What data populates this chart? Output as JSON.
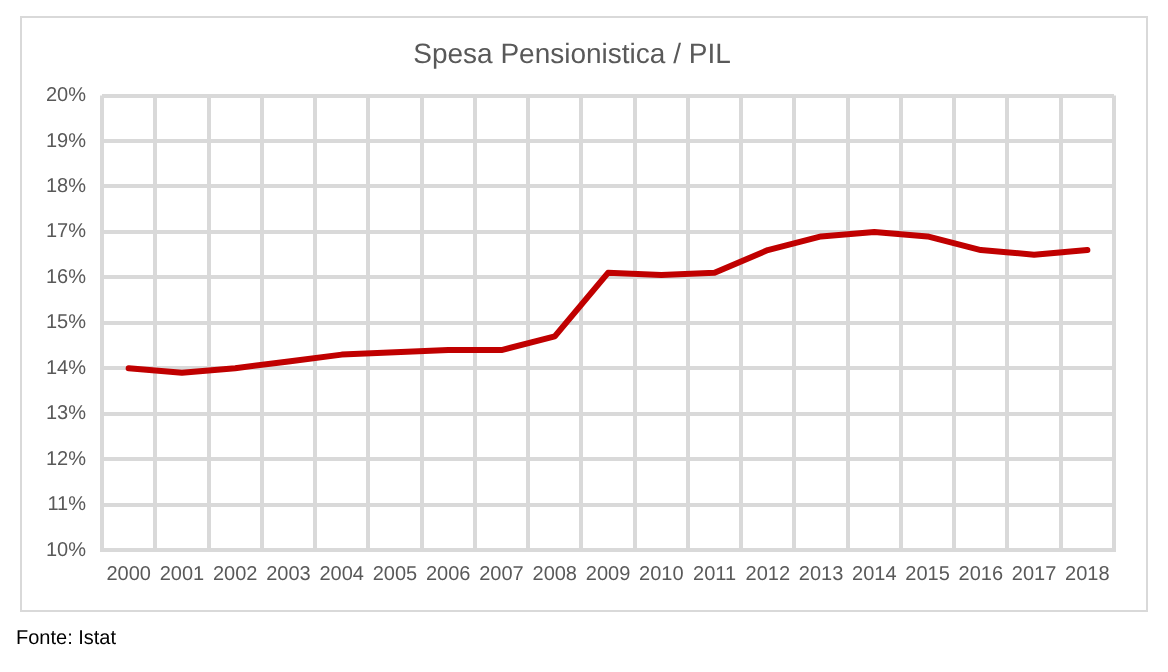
{
  "chart_data": {
    "type": "line",
    "title": "Spesa Pensionistica / PIL",
    "categories": [
      "2000",
      "2001",
      "2002",
      "2003",
      "2004",
      "2005",
      "2006",
      "2007",
      "2008",
      "2009",
      "2010",
      "2011",
      "2012",
      "2013",
      "2014",
      "2015",
      "2016",
      "2017",
      "2018"
    ],
    "series": [
      {
        "color": "#c00000",
        "values": [
          14.0,
          13.9,
          14.0,
          14.15,
          14.3,
          14.35,
          14.4,
          14.4,
          14.7,
          16.1,
          16.05,
          16.1,
          16.6,
          16.9,
          17.0,
          16.9,
          16.6,
          16.5,
          16.6
        ]
      }
    ],
    "ylim": [
      10,
      20
    ],
    "yticks": [
      {
        "value": 10,
        "label": "10%"
      },
      {
        "value": 11,
        "label": "11%"
      },
      {
        "value": 12,
        "label": "12%"
      },
      {
        "value": 13,
        "label": "13%"
      },
      {
        "value": 14,
        "label": "14%"
      },
      {
        "value": 15,
        "label": "15%"
      },
      {
        "value": 16,
        "label": "16%"
      },
      {
        "value": 17,
        "label": "17%"
      },
      {
        "value": 18,
        "label": "18%"
      },
      {
        "value": 19,
        "label": "19%"
      },
      {
        "value": 20,
        "label": "20%"
      }
    ],
    "grid": true,
    "legend": false,
    "marker": "none",
    "line_style": "solid",
    "annotations": [
      "Fonte: Istat"
    ]
  }
}
